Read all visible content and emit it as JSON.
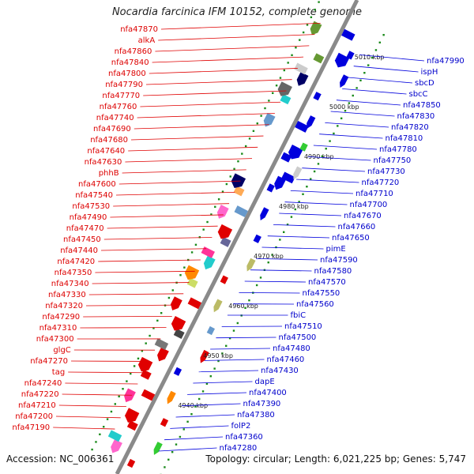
{
  "title": "Nocardia farcinica IFM 10152, complete genome",
  "footer": {
    "accession": "Accession: NC_006361",
    "stats": "Topology: circular; Length: 6,021,225 bp; Genes: 5,747"
  },
  "colors": {
    "forward_strand": "#e00000",
    "reverse_strand": "#0000dd",
    "backbone": "#8a8a8a",
    "tick": "#1a8a1a"
  },
  "scale_marks": [
    "5010 kbp",
    "5000 kbp",
    "4990 kbp",
    "4980 kbp",
    "4970 kbp",
    "4960 kbp",
    "4950 kbp",
    "4940 kbp"
  ],
  "left_labels": [
    "nfa47870",
    "alkA",
    "nfa47860",
    "nfa47840",
    "nfa47800",
    "nfa47790",
    "nfa47770",
    "nfa47760",
    "nfa47740",
    "nfa47690",
    "nfa47680",
    "nfa47640",
    "nfa47630",
    "phhB",
    "nfa47600",
    "nfa47540",
    "nfa47530",
    "nfa47490",
    "nfa47470",
    "nfa47450",
    "nfa47440",
    "nfa47420",
    "nfa47350",
    "nfa47340",
    "nfa47330",
    "nfa47320",
    "nfa47290",
    "nfa47310",
    "nfa47300",
    "glgC",
    "nfa47270",
    "tag",
    "nfa47240",
    "nfa47220",
    "nfa47210",
    "nfa47200",
    "nfa47190"
  ],
  "right_labels": [
    "nfa47990",
    "ispH",
    "sbcD",
    "sbcC",
    "nfa47850",
    "nfa47830",
    "nfa47820",
    "nfa47810",
    "nfa47780",
    "nfa47750",
    "nfa47730",
    "nfa47720",
    "nfa47710",
    "nfa47700",
    "nfa47670",
    "nfa47660",
    "nfa47650",
    "pimE",
    "nfa47590",
    "nfa47580",
    "nfa47570",
    "nfa47550",
    "nfa47560",
    "fbiC",
    "nfa47510",
    "nfa47500",
    "nfa47480",
    "nfa47460",
    "nfa47430",
    "dapE",
    "nfa47400",
    "nfa47390",
    "nfa47380",
    "folP2",
    "nfa47360",
    "nfa47280"
  ],
  "features": [
    {
      "color": "#e00000"
    },
    {
      "color": "#ff66cc"
    },
    {
      "color": "#22cccc"
    },
    {
      "color": "#33cc33"
    },
    {
      "color": "#e00000"
    },
    {
      "color": "#e00000"
    },
    {
      "color": "#e00000"
    },
    {
      "color": "#ff3399"
    },
    {
      "color": "#e00000"
    },
    {
      "color": "#ff8800"
    },
    {
      "color": "#e00000"
    },
    {
      "color": "#e00000"
    },
    {
      "color": "#0000dd"
    },
    {
      "color": "#e00000"
    },
    {
      "color": "#777777"
    },
    {
      "color": "#e00000"
    },
    {
      "color": "#444444"
    },
    {
      "color": "#e00000"
    },
    {
      "color": "#6699cc"
    },
    {
      "color": "#e00000"
    },
    {
      "color": "#e00000"
    },
    {
      "color": "#bbbb66"
    },
    {
      "color": "#ccdd66"
    },
    {
      "color": "#ff8800"
    },
    {
      "color": "#e00000"
    },
    {
      "color": "#22cccc"
    },
    {
      "color": "#ff3399"
    },
    {
      "color": "#bbbb66"
    },
    {
      "color": "#666699"
    },
    {
      "color": "#e00000"
    },
    {
      "color": "#0000dd"
    },
    {
      "color": "#ff66cc"
    },
    {
      "color": "#6699cc"
    },
    {
      "color": "#0000dd"
    },
    {
      "color": "#ffaa55"
    },
    {
      "color": "#000066"
    },
    {
      "color": "#0000dd"
    },
    {
      "color": "#0000dd"
    },
    {
      "color": "#0000dd"
    },
    {
      "color": "#cccccc"
    },
    {
      "color": "#0000dd"
    },
    {
      "color": "#0000dd"
    },
    {
      "color": "#33cc33"
    },
    {
      "color": "#6699cc"
    },
    {
      "color": "#0000dd"
    },
    {
      "color": "#0000dd"
    },
    {
      "color": "#22cccc"
    },
    {
      "color": "#666666"
    },
    {
      "color": "#0000dd"
    },
    {
      "color": "#000066"
    },
    {
      "color": "#cccccc"
    },
    {
      "color": "#0000dd"
    },
    {
      "color": "#669933"
    },
    {
      "color": "#0000dd"
    },
    {
      "color": "#0000dd"
    },
    {
      "color": "#669933"
    },
    {
      "color": "#0000dd"
    }
  ]
}
